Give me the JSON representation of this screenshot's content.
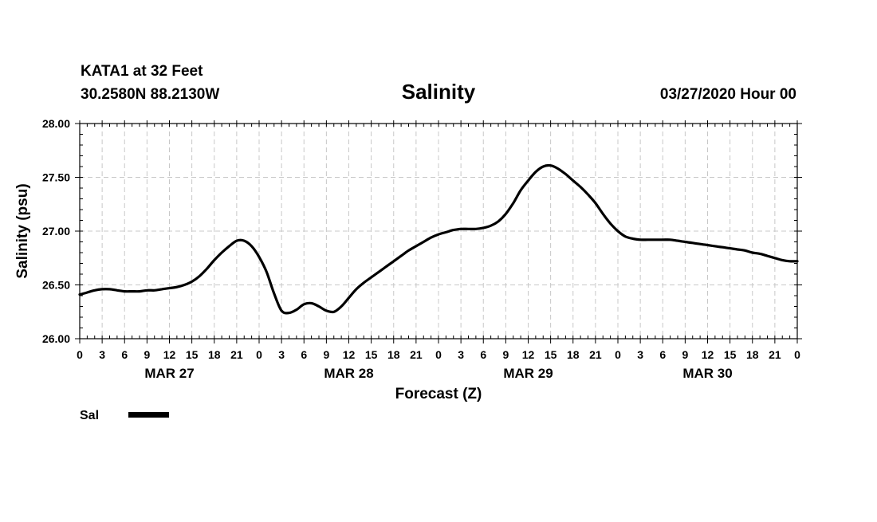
{
  "header": {
    "station": "KATA1 at 32 Feet",
    "coords": "30.2580N 88.2130W",
    "run": "03/27/2020 Hour 00"
  },
  "chart_data": {
    "type": "line",
    "title": "Salinity",
    "xlabel": "Forecast (Z)",
    "ylabel": "Salinity (psu)",
    "ylim": [
      26.0,
      28.0
    ],
    "yticks": [
      "26.00",
      "26.50",
      "27.00",
      "27.50",
      "28.00"
    ],
    "xlim": [
      0,
      96
    ],
    "x_unit": "forecast hour",
    "xtick_labels": [
      "0",
      "3",
      "6",
      "9",
      "12",
      "15",
      "18",
      "21",
      "0",
      "3",
      "6",
      "9",
      "12",
      "15",
      "18",
      "21",
      "0",
      "3",
      "6",
      "9",
      "12",
      "15",
      "18",
      "21",
      "0",
      "3",
      "6",
      "9",
      "12",
      "15",
      "18",
      "21",
      "0"
    ],
    "day_labels": [
      "MAR 27",
      "MAR 28",
      "MAR 29",
      "MAR 30"
    ],
    "grid": true,
    "legend_position": "bottom-left",
    "series": [
      {
        "name": "Sal",
        "color": "#000000",
        "x": [
          0,
          1,
          2,
          3,
          4,
          5,
          6,
          7,
          8,
          9,
          10,
          11,
          12,
          13,
          14,
          15,
          16,
          17,
          18,
          19,
          20,
          21,
          22,
          23,
          24,
          25,
          26,
          27,
          28,
          29,
          30,
          31,
          32,
          33,
          34,
          35,
          36,
          37,
          38,
          39,
          40,
          41,
          42,
          43,
          44,
          45,
          46,
          47,
          48,
          49,
          50,
          51,
          52,
          53,
          54,
          55,
          56,
          57,
          58,
          59,
          60,
          61,
          62,
          63,
          64,
          65,
          66,
          67,
          68,
          69,
          70,
          71,
          72,
          73,
          74,
          75,
          76,
          77,
          78,
          79,
          80,
          81,
          82,
          83,
          84,
          85,
          86,
          87,
          88,
          89,
          90,
          91,
          92,
          93,
          94,
          95,
          96
        ],
        "values": [
          26.41,
          26.43,
          26.45,
          26.46,
          26.46,
          26.45,
          26.44,
          26.44,
          26.44,
          26.45,
          26.45,
          26.46,
          26.47,
          26.48,
          26.5,
          26.53,
          26.58,
          26.65,
          26.73,
          26.8,
          26.86,
          26.91,
          26.91,
          26.86,
          26.76,
          26.62,
          26.42,
          26.26,
          26.24,
          26.27,
          26.32,
          26.33,
          26.3,
          26.26,
          26.25,
          26.3,
          26.38,
          26.46,
          26.52,
          26.57,
          26.62,
          26.67,
          26.72,
          26.77,
          26.82,
          26.86,
          26.9,
          26.94,
          26.97,
          26.99,
          27.01,
          27.02,
          27.02,
          27.02,
          27.03,
          27.05,
          27.09,
          27.16,
          27.26,
          27.38,
          27.47,
          27.55,
          27.6,
          27.61,
          27.58,
          27.53,
          27.47,
          27.41,
          27.34,
          27.26,
          27.16,
          27.07,
          27.0,
          26.95,
          26.93,
          26.92,
          26.92,
          26.92,
          26.92,
          26.92,
          26.91,
          26.9,
          26.89,
          26.88,
          26.87,
          26.86,
          26.85,
          26.84,
          26.83,
          26.82,
          26.8,
          26.79,
          26.77,
          26.75,
          26.73,
          26.72,
          26.72
        ]
      }
    ]
  }
}
